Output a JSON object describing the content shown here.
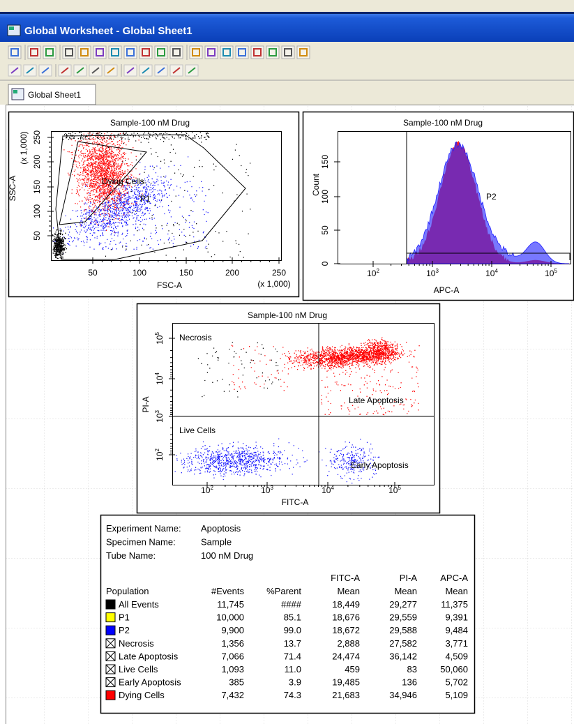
{
  "window": {
    "title": "Global Worksheet - Global Sheet1",
    "tab": "Global Sheet1"
  },
  "plots": [
    {
      "title": "Sample-100 nM Drug",
      "x_label": "FSC-A",
      "y_label": "SSC-A",
      "x_scale": "(x 1,000)",
      "y_scale": "(x 1,000)",
      "x_ticks": [
        "50",
        "100",
        "150",
        "200",
        "250"
      ],
      "y_ticks": [
        "250",
        "200",
        "150",
        "100",
        "50"
      ],
      "annotations": [
        "Dying Cells",
        "P1"
      ]
    },
    {
      "title": "Sample-100 nM Drug",
      "x_label": "APC-A",
      "y_label": "Count",
      "x_ticks": [
        {
          "base": "10",
          "exp": "2"
        },
        {
          "base": "10",
          "exp": "3"
        },
        {
          "base": "10",
          "exp": "4"
        },
        {
          "base": "10",
          "exp": "5"
        }
      ],
      "y_ticks": [
        "150",
        "100",
        "50",
        "0"
      ],
      "annotations": [
        "P2"
      ]
    },
    {
      "title": "Sample-100 nM Drug",
      "x_label": "FITC-A",
      "y_label": "PI-A",
      "x_ticks": [
        {
          "base": "10",
          "exp": "2"
        },
        {
          "base": "10",
          "exp": "3"
        },
        {
          "base": "10",
          "exp": "4"
        },
        {
          "base": "10",
          "exp": "5"
        }
      ],
      "y_ticks": [
        {
          "base": "10",
          "exp": "5"
        },
        {
          "base": "10",
          "exp": "4"
        },
        {
          "base": "10",
          "exp": "3"
        },
        {
          "base": "10",
          "exp": "2"
        }
      ],
      "annotations": [
        "Necrosis",
        "Late Apoptosis",
        "Live Cells",
        "Early Apoptosis"
      ]
    }
  ],
  "report": {
    "info": [
      {
        "label": "Experiment Name:",
        "value": "Apoptosis"
      },
      {
        "label": "Specimen Name:",
        "value": "Sample"
      },
      {
        "label": "Tube Name:",
        "value": "100 nM Drug"
      }
    ],
    "columns": [
      [
        "Population"
      ],
      [
        "#Events"
      ],
      [
        "%Parent"
      ],
      [
        "FITC-A",
        "Mean"
      ],
      [
        "PI-A",
        "Mean"
      ],
      [
        "APC-A",
        "Mean"
      ]
    ],
    "rows": [
      {
        "swatch": "#000000",
        "cells": [
          "All Events",
          "11,745",
          "####",
          "18,449",
          "29,277",
          "11,375"
        ]
      },
      {
        "swatch": "#ffff00",
        "cells": [
          "P1",
          "10,000",
          "85.1",
          "18,676",
          "29,559",
          "9,391"
        ]
      },
      {
        "swatch": "#0000ff",
        "cells": [
          "P2",
          "9,900",
          "99.0",
          "18,672",
          "29,588",
          "9,484"
        ]
      },
      {
        "swatch": "none",
        "cells": [
          "Necrosis",
          "1,356",
          "13.7",
          "2,888",
          "27,582",
          "3,771"
        ]
      },
      {
        "swatch": "none",
        "cells": [
          "Late Apoptosis",
          "7,066",
          "71.4",
          "24,474",
          "36,142",
          "4,509"
        ]
      },
      {
        "swatch": "none",
        "cells": [
          "Live Cells",
          "1,093",
          "11.0",
          "459",
          "83",
          "50,060"
        ]
      },
      {
        "swatch": "none",
        "cells": [
          "Early Apoptosis",
          "385",
          "3.9",
          "19,485",
          "136",
          "5,702"
        ]
      },
      {
        "swatch": "#ff0000",
        "cells": [
          "Dying Cells",
          "7,432",
          "74.3",
          "21,683",
          "34,946",
          "5,109"
        ]
      }
    ]
  }
}
